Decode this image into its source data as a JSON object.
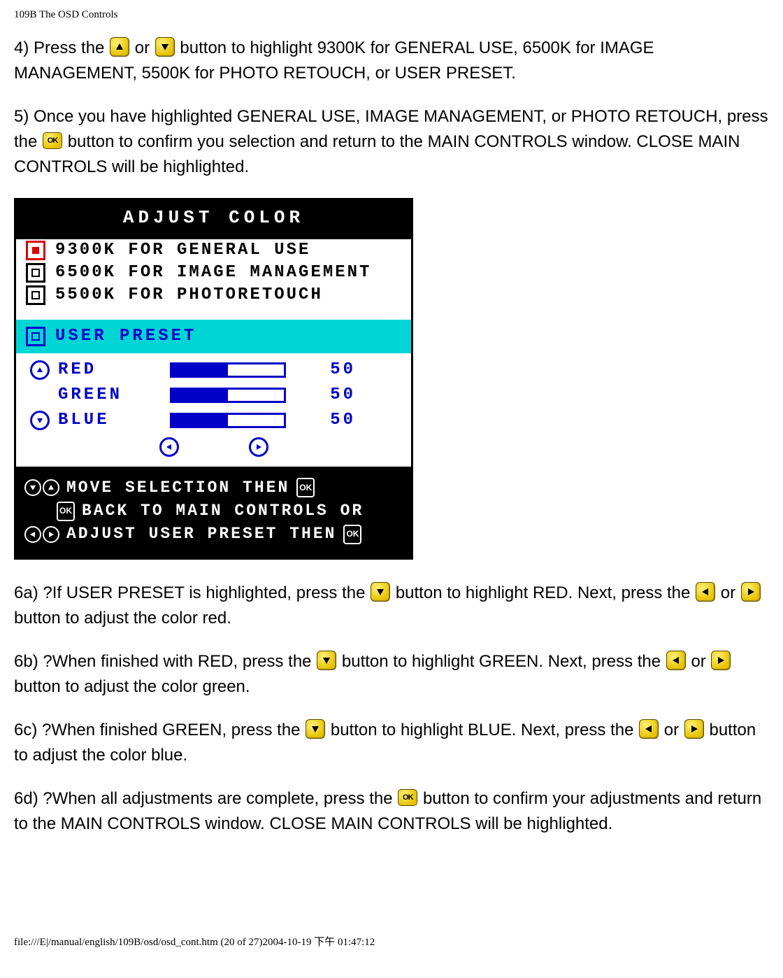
{
  "header": "109B The OSD Controls",
  "para4_a": "4) Press the ",
  "para4_b": " or ",
  "para4_c": " button to highlight 9300K for GENERAL USE, 6500K for IMAGE MANAGEMENT, 5500K for PHOTO RETOUCH, or USER PRESET.",
  "para5_a": "5) Once you have highlighted GENERAL USE, IMAGE MANAGEMENT, or PHOTO RETOUCH, press the ",
  "para5_b": " button to confirm you selection and return to the MAIN CONTROLS window. CLOSE MAIN CONTROLS will be highlighted.",
  "osd": {
    "title": "ADJUST COLOR",
    "options": [
      {
        "label": "9300K FOR GENERAL USE",
        "selected": true
      },
      {
        "label": "6500K FOR IMAGE MANAGEMENT",
        "selected": false
      },
      {
        "label": "5500K FOR PHOTORETOUCH",
        "selected": false
      }
    ],
    "user_preset_label": "USER PRESET",
    "channels": [
      {
        "name": "RED",
        "value": 50,
        "arrow": "up"
      },
      {
        "name": "GREEN",
        "value": 50,
        "arrow": ""
      },
      {
        "name": "BLUE",
        "value": 50,
        "arrow": "down"
      }
    ],
    "bar_max": 100,
    "blue": "#0000c8",
    "cyan": "#00d5d5",
    "instr1": "MOVE SELECTION THEN",
    "instr2": "BACK TO MAIN CONTROLS OR",
    "instr3": "ADJUST USER PRESET THEN"
  },
  "para6a_a": "6a) ?If USER PRESET is highlighted, press the ",
  "para6a_b": " button to highlight RED. Next, press the ",
  "para6a_c": " or ",
  "para6a_d": " button to adjust the color red.",
  "para6b_a": "6b) ?When finished with RED, press the ",
  "para6b_b": " button to highlight GREEN. Next, press the ",
  "para6b_c": " or ",
  "para6b_d": " button to adjust the color green.",
  "para6c_a": "6c) ?When finished GREEN, press the ",
  "para6c_b": " button to highlight BLUE. Next, press the ",
  "para6c_c": " or ",
  "para6c_d": " button to adjust the color blue.",
  "para6d_a": "6d) ?When all adjustments are complete, press the ",
  "para6d_b": " button to confirm your adjustments and return to the MAIN CONTROLS window. CLOSE MAIN CONTROLS will be highlighted.",
  "footer": "file:///E|/manual/english/109B/osd/osd_cont.htm (20 of 27)2004-10-19 下午 01:47:12"
}
